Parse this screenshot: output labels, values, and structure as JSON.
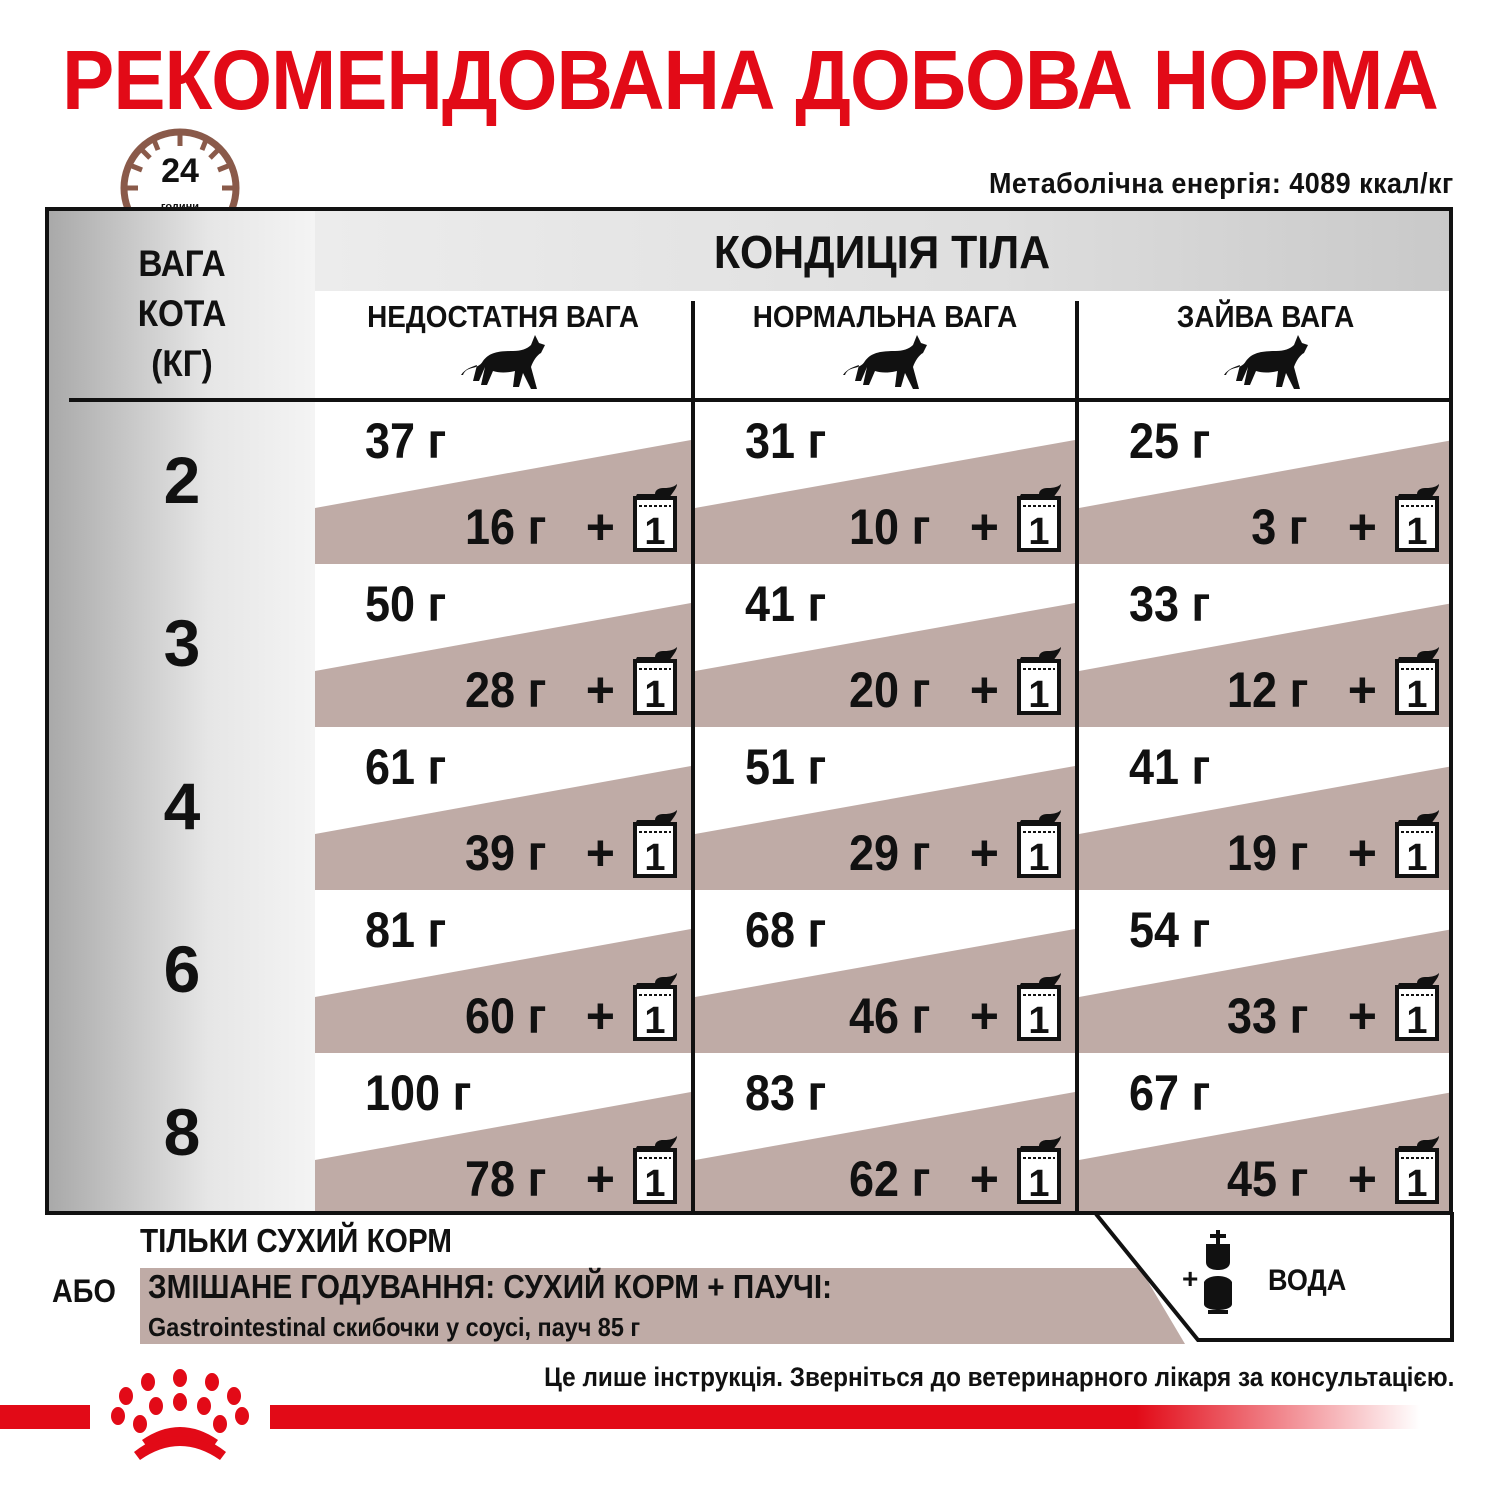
{
  "title": "РЕКОМЕНДОВАНА ДОБОВА НОРМА",
  "clock": {
    "number": "24",
    "unit": "години"
  },
  "energy": "Метаболічна енергія: 4089 ккал/кг",
  "table": {
    "weight_header": [
      "ВАГА",
      "КОТА",
      "(КГ)"
    ],
    "condition_title": "КОНДИЦІЯ ТІЛА",
    "columns": [
      "НЕДОСТАТНЯ ВАГА",
      "НОРМАЛЬНА ВАГА",
      "ЗАЙВА ВАГА"
    ],
    "pouch_count": "1",
    "plus": "+",
    "rows": [
      {
        "kg": "2",
        "cells": [
          {
            "dry": "37 г",
            "mixed": "16 г"
          },
          {
            "dry": "31 г",
            "mixed": "10 г"
          },
          {
            "dry": "25 г",
            "mixed": "3 г"
          }
        ]
      },
      {
        "kg": "3",
        "cells": [
          {
            "dry": "50 г",
            "mixed": "28 г"
          },
          {
            "dry": "41 г",
            "mixed": "20 г"
          },
          {
            "dry": "33 г",
            "mixed": "12 г"
          }
        ]
      },
      {
        "kg": "4",
        "cells": [
          {
            "dry": "61 г",
            "mixed": "39 г"
          },
          {
            "dry": "51 г",
            "mixed": "29 г"
          },
          {
            "dry": "41 г",
            "mixed": "19 г"
          }
        ]
      },
      {
        "kg": "6",
        "cells": [
          {
            "dry": "81 г",
            "mixed": "60 г"
          },
          {
            "dry": "68 г",
            "mixed": "46 г"
          },
          {
            "dry": "54 г",
            "mixed": "33 г"
          }
        ]
      },
      {
        "kg": "8",
        "cells": [
          {
            "dry": "100 г",
            "mixed": "78 г"
          },
          {
            "dry": "83 г",
            "mixed": "62 г"
          },
          {
            "dry": "67 г",
            "mixed": "45 г"
          }
        ]
      }
    ]
  },
  "legend": {
    "dry_only": "ТІЛЬКИ СУХИЙ КОРМ",
    "or": "АБО",
    "mixed_title": "ЗМІШАНЕ ГОДУВАННЯ: СУХИЙ КОРМ + ПАУЧІ:",
    "mixed_detail": "Gastrointestinal скибочки у соусі, пауч 85 г",
    "water_plus": "+",
    "water": "ВОДА"
  },
  "note": "Це лише інструкція. Зверніться до ветеринарного лікаря за консультацією.",
  "colors": {
    "brand_red": "#e20a17",
    "mixed_band": "#bfaba6",
    "clock_brown": "#8a5a4a"
  }
}
